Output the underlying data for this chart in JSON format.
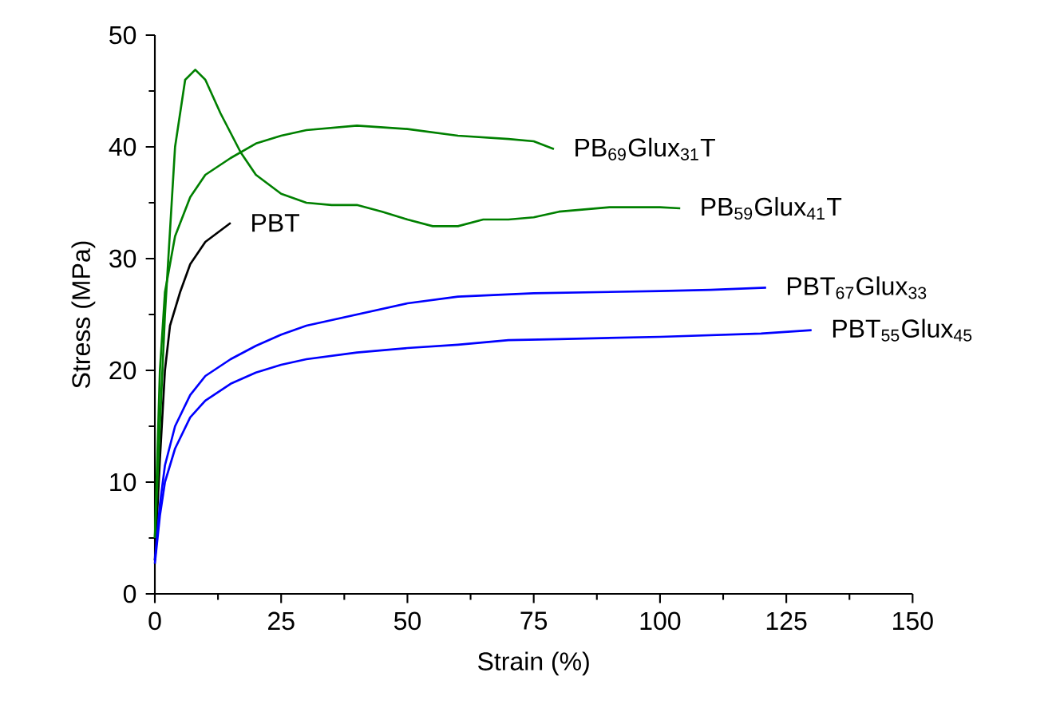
{
  "chart_data": {
    "type": "line",
    "xlabel": "Strain (%)",
    "ylabel": "Stress (MPa)",
    "xlim": [
      0,
      150
    ],
    "xticks": [
      0,
      25,
      50,
      75,
      100,
      125,
      150
    ],
    "ylim": [
      0,
      50
    ],
    "yticks": [
      0,
      10,
      20,
      30,
      40,
      50
    ],
    "series": [
      {
        "name": "PBT",
        "color": "#000000",
        "x": [
          0,
          1,
          2,
          3,
          5,
          7,
          10,
          15
        ],
        "values": [
          3,
          12,
          20,
          24,
          27,
          29.5,
          31.5,
          33.2
        ]
      },
      {
        "name": "PB$_{69}$Glux$_{31}$T",
        "color": "#008000",
        "x": [
          0,
          1,
          2,
          4,
          7,
          10,
          15,
          20,
          25,
          30,
          40,
          50,
          60,
          70,
          75,
          79
        ],
        "values": [
          5,
          20,
          27,
          32,
          35.5,
          37.5,
          39,
          40.3,
          41,
          41.5,
          41.9,
          41.6,
          41,
          40.7,
          40.5,
          39.8
        ]
      },
      {
        "name": "PB$_{59}$Glux$_{41}$T",
        "color": "#008000",
        "x": [
          0,
          2,
          4,
          6,
          8,
          10,
          13,
          17,
          20,
          25,
          30,
          35,
          40,
          45,
          50,
          55,
          60,
          65,
          70,
          75,
          80,
          90,
          100,
          104
        ],
        "values": [
          5,
          25,
          40,
          46,
          46.9,
          46,
          43,
          39.5,
          37.5,
          35.8,
          35,
          34.8,
          34.8,
          34.2,
          33.5,
          32.9,
          32.9,
          33.5,
          33.5,
          33.7,
          34.2,
          34.6,
          34.6,
          34.5
        ]
      },
      {
        "name": "PBT$_{67}$Glux$_{33}$",
        "color": "#0000ff",
        "x": [
          0,
          1,
          2,
          4,
          7,
          10,
          15,
          20,
          25,
          30,
          40,
          50,
          60,
          75,
          100,
          110,
          121
        ],
        "values": [
          3,
          8,
          11.5,
          15,
          17.8,
          19.5,
          21,
          22.2,
          23.2,
          24,
          25,
          26,
          26.6,
          26.9,
          27.1,
          27.2,
          27.4
        ]
      },
      {
        "name": "PBT$_{55}$Glux$_{45}$",
        "color": "#0000ff",
        "x": [
          0,
          1,
          2,
          4,
          7,
          10,
          15,
          20,
          25,
          30,
          40,
          50,
          60,
          70,
          80,
          100,
          120,
          130
        ],
        "values": [
          2.7,
          7,
          10,
          13,
          15.8,
          17.3,
          18.8,
          19.8,
          20.5,
          21,
          21.6,
          22,
          22.3,
          22.7,
          22.8,
          23,
          23.3,
          23.6
        ]
      }
    ]
  }
}
